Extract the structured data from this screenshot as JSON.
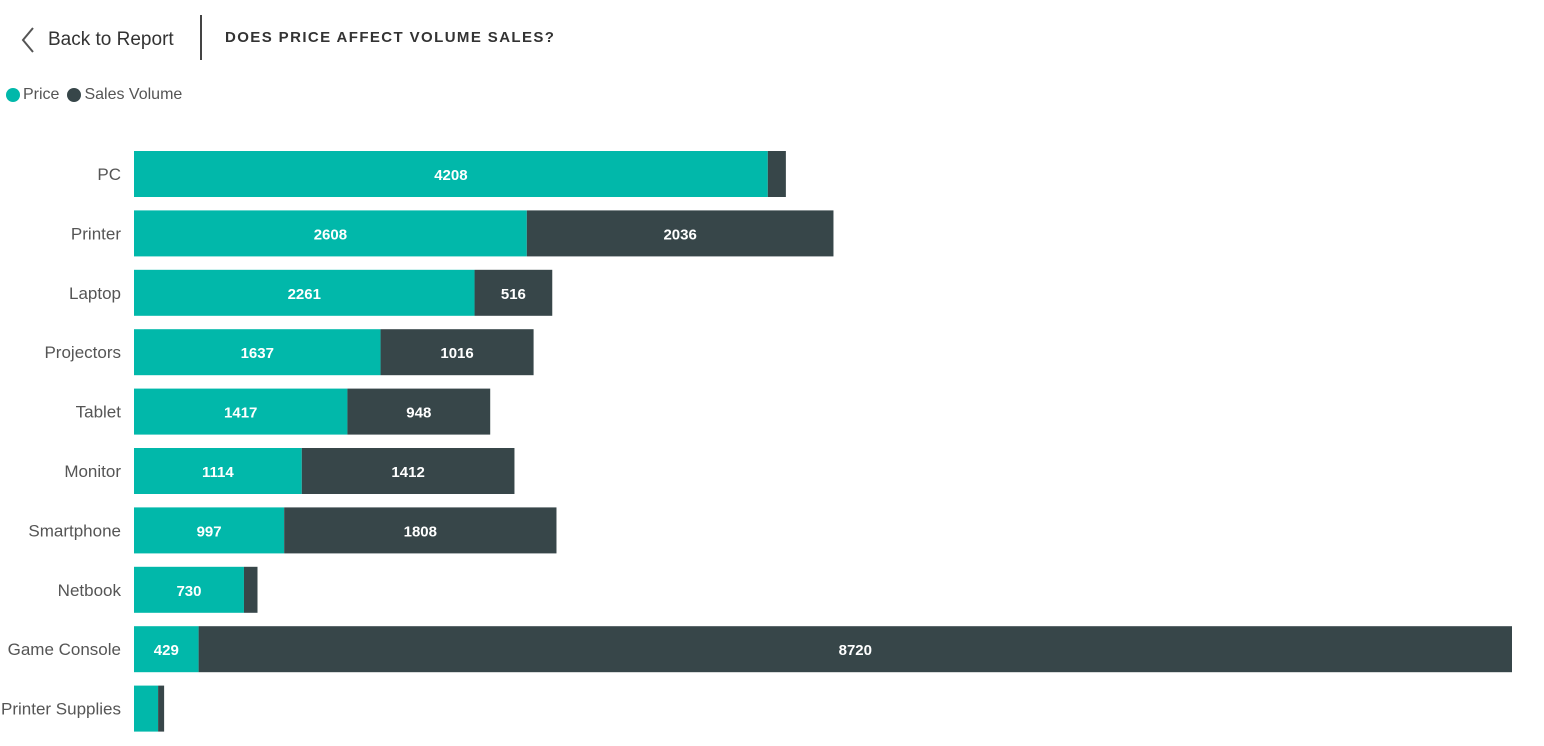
{
  "header": {
    "back_label": "Back to Report",
    "title": "DOES PRICE AFFECT VOLUME SALES?"
  },
  "legend": [
    {
      "label": "Price",
      "color": "#01b8aa"
    },
    {
      "label": "Sales Volume",
      "color": "#374649"
    }
  ],
  "chart_data": {
    "type": "bar",
    "orientation": "horizontal",
    "stacked": true,
    "categories": [
      "PC",
      "Printer",
      "Laptop",
      "Projectors",
      "Tablet",
      "Monitor",
      "Smartphone",
      "Netbook",
      "Game Console",
      "Printer Supplies"
    ],
    "series": [
      {
        "name": "Price",
        "color": "#01b8aa",
        "values": [
          4208,
          2608,
          2261,
          1637,
          1417,
          1114,
          997,
          730,
          429,
          160
        ],
        "labels": [
          "4208",
          "2608",
          "2261",
          "1637",
          "1417",
          "1114",
          "997",
          "730",
          "429",
          ""
        ]
      },
      {
        "name": "Sales Volume",
        "color": "#374649",
        "values": [
          120,
          2036,
          516,
          1016,
          948,
          1412,
          1808,
          90,
          8720,
          40
        ],
        "labels": [
          "",
          "2036",
          "516",
          "1016",
          "948",
          "1412",
          "1808",
          "",
          "8720",
          ""
        ]
      }
    ],
    "title": "DOES PRICE AFFECT VOLUME SALES?",
    "xlim": [
      0,
      9200
    ],
    "legend_position": "top-left",
    "grid": false
  }
}
